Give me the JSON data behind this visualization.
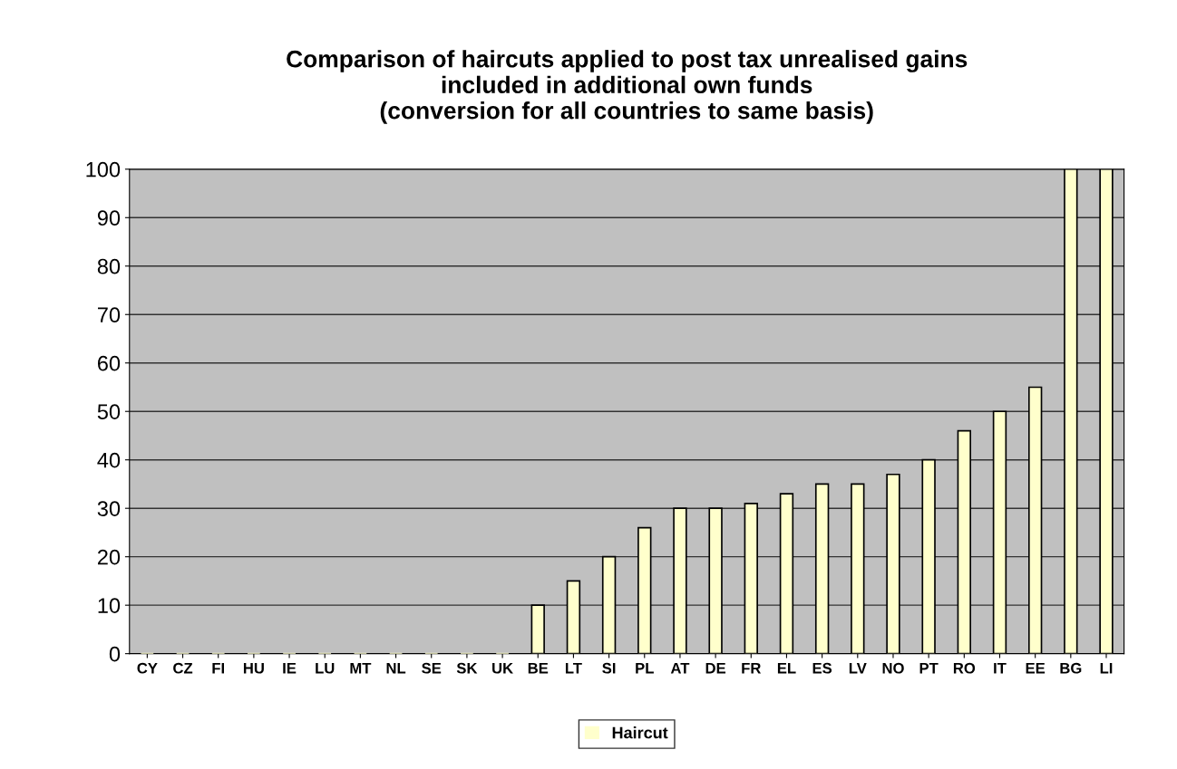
{
  "chart_data": {
    "type": "bar",
    "title": "Comparison of haircuts applied to post tax unrealised gains\nincluded in additional own funds\n(conversion for all countries to same basis)",
    "categories": [
      "CY",
      "CZ",
      "FI",
      "HU",
      "IE",
      "LU",
      "MT",
      "NL",
      "SE",
      "SK",
      "UK",
      "BE",
      "LT",
      "SI",
      "PL",
      "AT",
      "DE",
      "FR",
      "EL",
      "ES",
      "LV",
      "NO",
      "PT",
      "RO",
      "IT",
      "EE",
      "BG",
      "LI"
    ],
    "series": [
      {
        "name": "Haircut",
        "color": "#ffffcc",
        "values": [
          0,
          0,
          0,
          0,
          0,
          0,
          0,
          0,
          0,
          0,
          0,
          10,
          15,
          20,
          26,
          30,
          30,
          31,
          33,
          35,
          35,
          37,
          40,
          46,
          50,
          55,
          100,
          100
        ]
      }
    ],
    "ylim": [
      0,
      100
    ],
    "yticks": [
      0,
      10,
      20,
      30,
      40,
      50,
      60,
      70,
      80,
      90,
      100
    ],
    "grid": "y",
    "legend": "bottom"
  }
}
